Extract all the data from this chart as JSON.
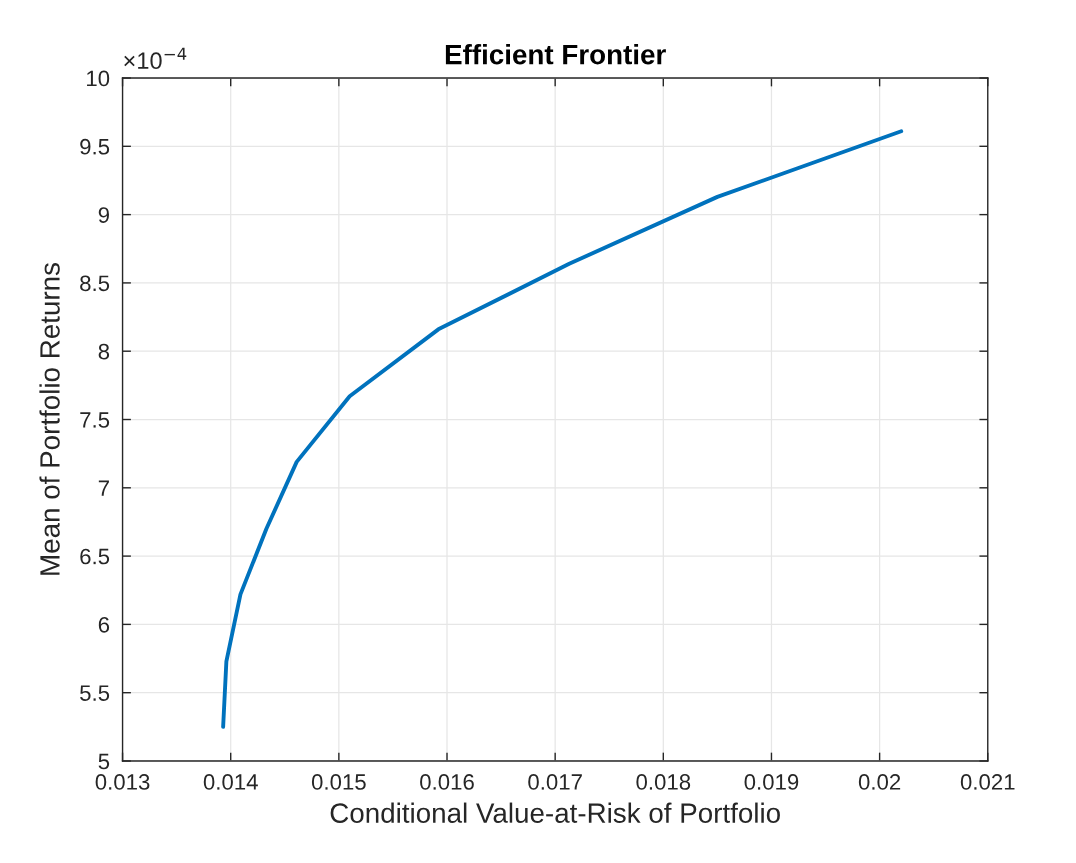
{
  "chart_data": {
    "type": "line",
    "title": "Efficient Frontier",
    "xlabel": "Conditional Value-at-Risk of Portfolio",
    "ylabel": "Mean of Portfolio Returns",
    "annotations": [
      "×10$^{−4}$"
    ],
    "x": [
      0.01393,
      0.01396,
      0.01409,
      0.01433,
      0.01461,
      0.0151,
      0.01592,
      0.01713,
      0.0185,
      0.0202
    ],
    "series": [
      {
        "color": "#0072bd",
        "values": [
          5.25,
          5.73,
          6.22,
          6.7,
          7.19,
          7.67,
          8.16,
          8.64,
          9.13,
          9.61
        ]
      }
    ],
    "xlim": [
      0.013,
      0.021
    ],
    "ylim": [
      5,
      10
    ],
    "xticks": [
      0.013,
      0.014,
      0.015,
      0.016,
      0.017,
      0.018,
      0.019,
      0.02,
      0.021
    ],
    "yticks": [
      5,
      5.5,
      6,
      6.5,
      7,
      7.5,
      8,
      8.5,
      9,
      9.5,
      10
    ],
    "grid": true,
    "line_style": "solid"
  }
}
